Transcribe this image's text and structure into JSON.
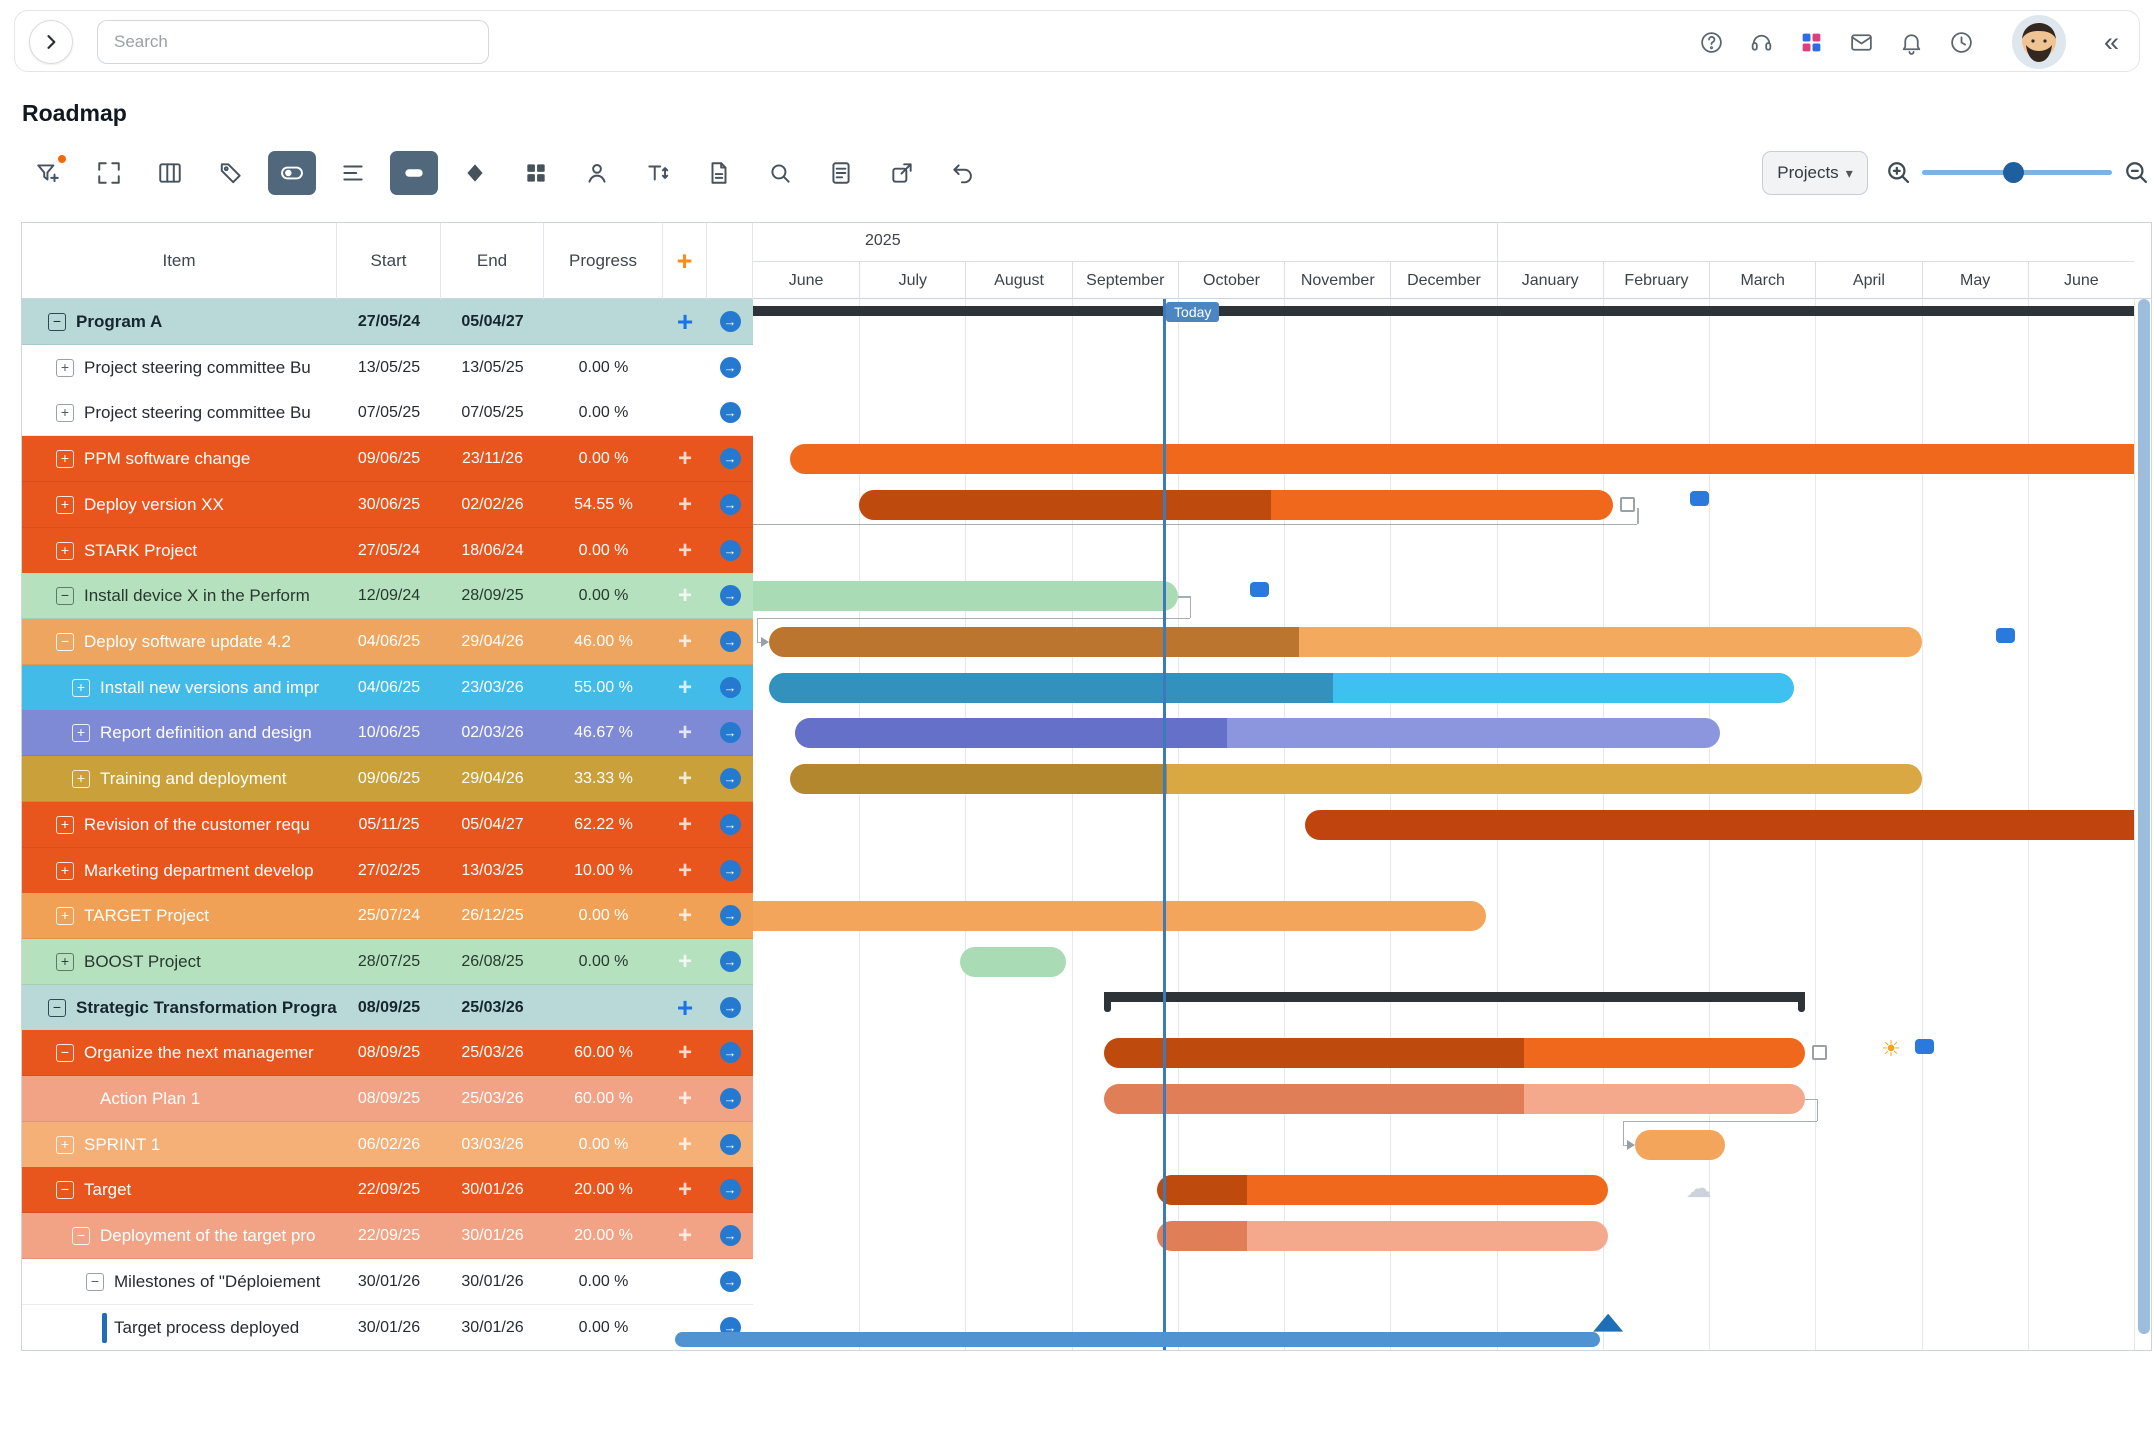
{
  "page_title": "Roadmap",
  "topbar": {
    "search_placeholder": "Search",
    "collapse_right_icon": "«",
    "icons": [
      "chevron-right",
      "help",
      "headset",
      "apps-grid",
      "mail",
      "bell",
      "clock",
      "avatar",
      "collapse"
    ]
  },
  "toolbar": {
    "projects_label": "Projects",
    "caret": "▾",
    "slider_pos": 0.48,
    "icons": [
      "filter-add",
      "fit-screen",
      "columns",
      "tags",
      "baseline-toggle",
      "row-list",
      "bars-view",
      "milestones",
      "grid-view",
      "assignees",
      "text-size",
      "export-pdf",
      "search",
      "document",
      "share",
      "undo"
    ],
    "active_icons": [
      "baseline-toggle",
      "bars-view"
    ]
  },
  "table": {
    "columns": {
      "item": "Item",
      "start": "Start",
      "end": "End",
      "progress": "Progress",
      "add": "+"
    },
    "arrow_glyph": "→",
    "rows": [
      {
        "label": "Program A",
        "start": "27/05/24",
        "end": "05/04/27",
        "progress": "",
        "style": "teal",
        "lv": 0,
        "exp": "minus",
        "plus": "blue",
        "bar": {
          "type": "summary",
          "s": 0,
          "e": 13,
          "clipL": true,
          "clipR": true
        }
      },
      {
        "label": "Project steering committee Bu",
        "start": "13/05/25",
        "end": "13/05/25",
        "progress": "0.00 %",
        "style": "white",
        "lv": 1,
        "exp": "plus",
        "plus": null,
        "bar": null
      },
      {
        "label": "Project steering committee Bu",
        "start": "07/05/25",
        "end": "07/05/25",
        "progress": "0.00 %",
        "style": "white",
        "lv": 1,
        "exp": "plus",
        "plus": null,
        "bar": null
      },
      {
        "label": "PPM software change",
        "start": "09/06/25",
        "end": "23/11/26",
        "progress": "0.00 %",
        "style": "orange",
        "lv": 1,
        "exp": "plus",
        "plus": "faint",
        "bar": {
          "type": "bar",
          "s": 0.35,
          "e": 13,
          "clipR": true,
          "color": "barOrange"
        }
      },
      {
        "label": "Deploy version XX",
        "start": "30/06/25",
        "end": "02/02/26",
        "progress": "54.55 %",
        "style": "orange",
        "lv": 1,
        "exp": "plus",
        "plus": "faint",
        "bar": {
          "type": "bar",
          "s": 1.0,
          "e": 8.1,
          "prog": 0.5455,
          "color": "barOrange",
          "dark": "barOrangeDark"
        }
      },
      {
        "label": "STARK Project",
        "start": "27/05/24",
        "end": "18/06/24",
        "progress": "0.00 %",
        "style": "orange",
        "lv": 1,
        "exp": "plus",
        "plus": "faint",
        "bar": null
      },
      {
        "label": "Install device X in the Perform",
        "start": "12/09/24",
        "end": "28/09/25",
        "progress": "0.00 %",
        "style": "green",
        "lv": 1,
        "exp": "minus",
        "plus": "faint",
        "bar": {
          "type": "bar",
          "s": 0,
          "e": 4.0,
          "clipL": true,
          "color": "barGreen"
        }
      },
      {
        "label": "Deploy software update 4.2",
        "start": "04/06/25",
        "end": "29/04/26",
        "progress": "46.00 %",
        "style": "tan",
        "lv": 1,
        "exp": "minus",
        "plus": "faint",
        "bar": {
          "type": "bar",
          "s": 0.15,
          "e": 11.0,
          "prog": 0.46,
          "color": "barTan",
          "dark": "barTanDark"
        }
      },
      {
        "label": "Install new versions and impr",
        "start": "04/06/25",
        "end": "23/03/26",
        "progress": "55.00 %",
        "style": "blue",
        "lv": 2,
        "exp": "plus",
        "plus": "faint",
        "bar": {
          "type": "bar",
          "s": 0.15,
          "e": 9.8,
          "prog": 0.55,
          "color": "barBlue",
          "dark": "barBlueDark"
        }
      },
      {
        "label": "Report definition and design",
        "start": "10/06/25",
        "end": "02/03/26",
        "progress": "46.67 %",
        "style": "purple",
        "lv": 2,
        "exp": "plus",
        "plus": "faint",
        "bar": {
          "type": "bar",
          "s": 0.4,
          "e": 9.1,
          "prog": 0.4667,
          "color": "barPurple",
          "dark": "barPurpleDark"
        }
      },
      {
        "label": "Training and deployment",
        "start": "09/06/25",
        "end": "29/04/26",
        "progress": "33.33 %",
        "style": "gold",
        "lv": 2,
        "exp": "plus",
        "plus": "faint",
        "bar": {
          "type": "bar",
          "s": 0.35,
          "e": 11.0,
          "prog": 0.3333,
          "color": "barGold",
          "dark": "barGoldDark"
        }
      },
      {
        "label": "Revision of the customer requ",
        "start": "05/11/25",
        "end": "05/04/27",
        "progress": "62.22 %",
        "style": "orange",
        "lv": 1,
        "exp": "plus",
        "plus": "faint",
        "bar": {
          "type": "bar",
          "s": 5.2,
          "e": 13,
          "clipR": true,
          "color": "barRed"
        }
      },
      {
        "label": "Marketing department develop",
        "start": "27/02/25",
        "end": "13/03/25",
        "progress": "10.00 %",
        "style": "orange",
        "lv": 1,
        "exp": "plus",
        "plus": "faint",
        "bar": null
      },
      {
        "label": "TARGET Project",
        "start": "25/07/24",
        "end": "26/12/25",
        "progress": "0.00 %",
        "style": "lightOrange",
        "lv": 1,
        "exp": "plus",
        "plus": "faint",
        "bar": {
          "type": "bar",
          "s": 0,
          "e": 6.9,
          "clipL": true,
          "color": "barLightOrange"
        }
      },
      {
        "label": "BOOST Project",
        "start": "28/07/25",
        "end": "26/08/25",
        "progress": "0.00 %",
        "style": "green",
        "lv": 1,
        "exp": "plus",
        "plus": "faint",
        "bar": {
          "type": "bar",
          "s": 1.95,
          "e": 2.95,
          "color": "barGreen"
        }
      },
      {
        "label": "Strategic Transformation Progra",
        "start": "08/09/25",
        "end": "25/03/26",
        "progress": "",
        "style": "teal",
        "lv": 0,
        "exp": "minus",
        "plus": "blue",
        "bar": {
          "type": "summary",
          "s": 3.3,
          "e": 9.9
        }
      },
      {
        "label": "Organize the next managemer",
        "start": "08/09/25",
        "end": "25/03/26",
        "progress": "60.00 %",
        "style": "orange",
        "lv": 1,
        "exp": "minus",
        "plus": "faint",
        "bar": {
          "type": "bar",
          "s": 3.3,
          "e": 9.9,
          "prog": 0.6,
          "color": "barOrange",
          "dark": "barOrangeDark"
        }
      },
      {
        "label": "Action Plan 1",
        "start": "08/09/25",
        "end": "25/03/26",
        "progress": "60.00 %",
        "style": "salmon",
        "lv": 2,
        "exp": null,
        "plus": "faint",
        "bar": {
          "type": "bar",
          "s": 3.3,
          "e": 9.9,
          "prog": 0.6,
          "color": "barSalmon",
          "dark": "barSalmonDark"
        }
      },
      {
        "label": "SPRINT 1",
        "start": "06/02/26",
        "end": "03/03/26",
        "progress": "0.00 %",
        "style": "sprint",
        "lv": 1,
        "exp": "plus",
        "plus": "faint",
        "bar": {
          "type": "bar",
          "s": 8.3,
          "e": 9.15,
          "color": "barLightOrange"
        }
      },
      {
        "label": "Target",
        "start": "22/09/25",
        "end": "30/01/26",
        "progress": "20.00 %",
        "style": "orange",
        "lv": 1,
        "exp": "minus",
        "plus": "faint",
        "bar": {
          "type": "bar",
          "s": 3.8,
          "e": 8.05,
          "prog": 0.2,
          "color": "barOrange",
          "dark": "barOrangeDark"
        }
      },
      {
        "label": "Deployment of the target pro",
        "start": "22/09/25",
        "end": "30/01/26",
        "progress": "20.00 %",
        "style": "salmon",
        "lv": 2,
        "exp": "minus",
        "plus": "faint",
        "bar": {
          "type": "bar",
          "s": 3.8,
          "e": 8.05,
          "prog": 0.2,
          "color": "barSalmon",
          "dark": "barSalmonDark"
        }
      },
      {
        "label": "Milestones of \"Déploiement",
        "start": "30/01/26",
        "end": "30/01/26",
        "progress": "0.00 %",
        "style": "white",
        "lv": 3,
        "exp": "minus",
        "plus": null,
        "bar": null
      },
      {
        "label": "Target process deployed",
        "start": "30/01/26",
        "end": "30/01/26",
        "progress": "0.00 %",
        "style": "white",
        "lv": 3,
        "exp": null,
        "plus": null,
        "stripe": true,
        "bar": null
      }
    ]
  },
  "timeline": {
    "year": "2025",
    "months": [
      "June",
      "July",
      "August",
      "September",
      "October",
      "November",
      "December",
      "January",
      "February",
      "March",
      "April",
      "May",
      "June"
    ],
    "year_split_index": 7,
    "today_label": "Today",
    "today_m": 3.86
  },
  "overlays": [
    {
      "kind": "tail",
      "row": 4,
      "m": 8.1
    },
    {
      "kind": "handle",
      "row": 4,
      "m": 8.14
    },
    {
      "kind": "comment",
      "row": 4,
      "m": 8.82
    },
    {
      "kind": "backlink",
      "fromRow": 6,
      "fromM": 4.0,
      "toRow": 7,
      "toM": 0.15
    },
    {
      "kind": "comment",
      "row": 6,
      "m": 4.68
    },
    {
      "kind": "comment",
      "row": 7,
      "m": 11.7
    },
    {
      "kind": "handle",
      "row": 16,
      "m": 9.95
    },
    {
      "kind": "glyph",
      "name": "sun-icon",
      "row": 16,
      "m": 10.62,
      "glyph": "☀",
      "color": "#f5a31a",
      "size": 22
    },
    {
      "kind": "comment",
      "row": 16,
      "m": 10.94
    },
    {
      "kind": "backlink",
      "fromRow": 17,
      "fromM": 9.9,
      "toRow": 18,
      "toM": 8.3
    },
    {
      "kind": "glyph",
      "name": "cloud-icon",
      "row": 19,
      "m": 8.78,
      "glyph": "☁",
      "color": "#ccd3da",
      "size": 26
    },
    {
      "kind": "milestone",
      "row": 22,
      "m": 8.05
    }
  ],
  "palette": {
    "rowTeal": "#b9d9d8",
    "rowOrange": "#e9561d",
    "rowGreen": "#b5e1bf",
    "rowTan": "#eda55f",
    "rowBlue": "#43bbe9",
    "rowPurple": "#7f8ad6",
    "rowGold": "#c9a039",
    "rowLightOrange": "#f0a156",
    "rowSalmon": "#f3a385",
    "rowSprint": "#f4b077",
    "barOrange": "#f0681c",
    "barOrangeDark": "#bf4a0e",
    "barTan": "#f3a95e",
    "barTanDark": "#bb752f",
    "barBlue": "#3ec0f0",
    "barBlueDark": "#3391bd",
    "barPurple": "#8b96de",
    "barPurpleDark": "#6570c8",
    "barGold": "#d9a843",
    "barGoldDark": "#b3872e",
    "barGreen": "#a9dcb5",
    "barLightOrange": "#f2a55b",
    "barSalmon": "#f4a98d",
    "barSalmonDark": "#e07e58",
    "barRed": "#c0440d",
    "summary": "#2e3338",
    "milestone": "#1e6fb8",
    "today": "#3d7ab8",
    "accent": "#2579ce"
  }
}
